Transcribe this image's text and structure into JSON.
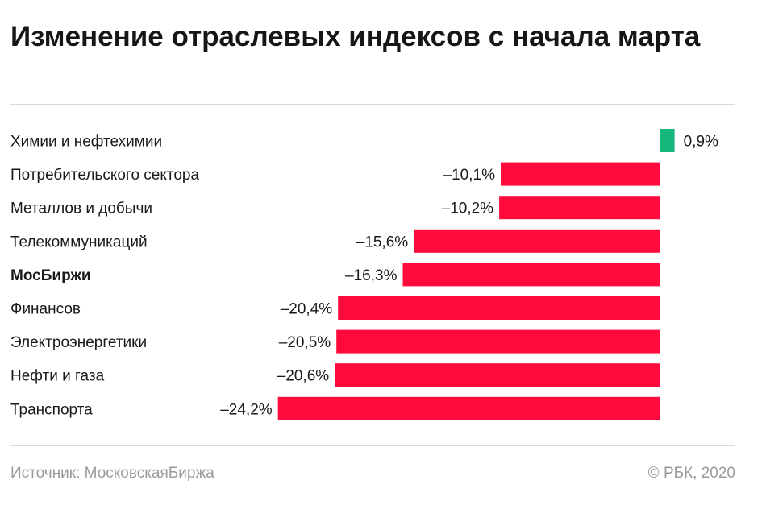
{
  "title": "Изменение отраслевых индексов с начала марта",
  "source": "Источник: МосковскаяБиржа",
  "copyright": "© РБК, 2020",
  "colors": {
    "negative": "#ff0a3c",
    "positive": "#17b67a"
  },
  "chart_data": {
    "type": "bar",
    "orientation": "horizontal",
    "title": "Изменение отраслевых индексов с начала марта",
    "categories": [
      "Химии и нефтехимии",
      "Потребительского сектора",
      "Металлов и добычи",
      "Телекоммуникаций",
      "МосБиржи",
      "Финансов",
      "Электроэнергетики",
      "Нефти и газа",
      "Транспорта"
    ],
    "values": [
      0.9,
      -10.1,
      -10.2,
      -15.6,
      -16.3,
      -20.4,
      -20.5,
      -20.6,
      -24.2
    ],
    "labels": [
      "0,9%",
      "–10,1%",
      "–10,2%",
      "–15,6%",
      "–16,3%",
      "–20,4%",
      "–20,5%",
      "–20,6%",
      "–24,2%"
    ],
    "highlighted": [
      "МосБиржи"
    ],
    "unit": "%",
    "grid": false,
    "legend": false
  }
}
